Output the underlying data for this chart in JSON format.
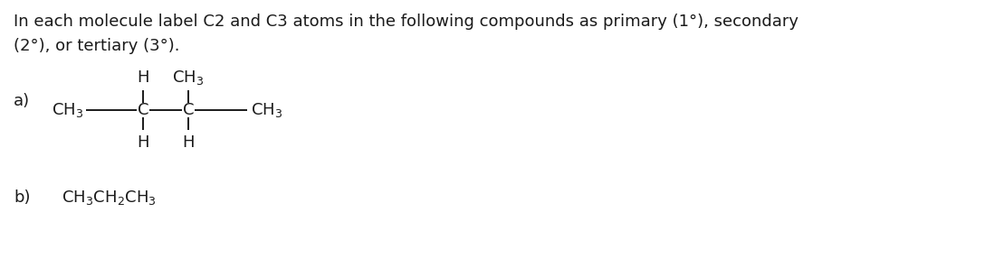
{
  "background_color": "#ffffff",
  "title_line1": "In each molecule label C2 and C3 atoms in the following compounds as primary (1°), secondary",
  "title_line2": "(2°), or tertiary (3°).",
  "font_size": 13.0,
  "text_color": "#1a1a1a",
  "label_a": "a)",
  "label_b": "b)",
  "formula_b": "CH$_3$CH$_2$CH$_3$"
}
